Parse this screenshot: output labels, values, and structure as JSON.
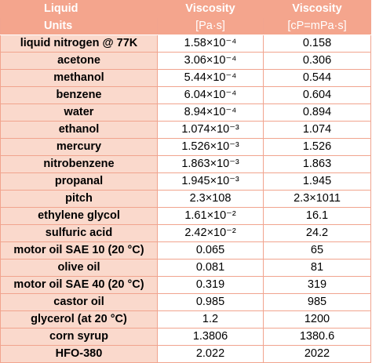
{
  "table": {
    "header": {
      "col1": "Liquid",
      "col2": "Viscosity",
      "col3": "Viscosity"
    },
    "units": {
      "label": "Units",
      "col2": "[Pa·s]",
      "col3": "[cP=mPa·s]"
    },
    "rows": [
      {
        "name": "liquid nitrogen @ 77K",
        "pas": "1.58×10⁻⁴",
        "cp": "0.158"
      },
      {
        "name": "acetone",
        "pas": "3.06×10⁻⁴",
        "cp": "0.306"
      },
      {
        "name": "methanol",
        "pas": "5.44×10⁻⁴",
        "cp": "0.544"
      },
      {
        "name": "benzene",
        "pas": "6.04×10⁻⁴",
        "cp": "0.604"
      },
      {
        "name": "water",
        "pas": "8.94×10⁻⁴",
        "cp": "0.894"
      },
      {
        "name": "ethanol",
        "pas": "1.074×10⁻³",
        "cp": "1.074"
      },
      {
        "name": "mercury",
        "pas": "1.526×10⁻³",
        "cp": "1.526"
      },
      {
        "name": "nitrobenzene",
        "pas": "1.863×10⁻³",
        "cp": "1.863"
      },
      {
        "name": "propanal",
        "pas": "1.945×10⁻³",
        "cp": "1.945"
      },
      {
        "name": "pitch",
        "pas": "2.3×108",
        "cp": "2.3×1011"
      },
      {
        "name": "ethylene glycol",
        "pas": "1.61×10⁻²",
        "cp": "16.1"
      },
      {
        "name": "sulfuric acid",
        "pas": "2.42×10⁻²",
        "cp": "24.2"
      },
      {
        "name": "motor oil SAE 10 (20 °C)",
        "pas": "0.065",
        "cp": "65"
      },
      {
        "name": "olive oil",
        "pas": "0.081",
        "cp": "81"
      },
      {
        "name": "motor oil SAE 40 (20 °C)",
        "pas": "0.319",
        "cp": "319"
      },
      {
        "name": "castor oil",
        "pas": "0.985",
        "cp": "985"
      },
      {
        "name": "glycerol (at 20 °C)",
        "pas": "1.2",
        "cp": "1200"
      },
      {
        "name": "corn syrup",
        "pas": "1.3806",
        "cp": "1380.6"
      },
      {
        "name": "HFO-380",
        "pas": "2.022",
        "cp": "2022"
      }
    ]
  },
  "colors": {
    "header_bg": "#f4a58d",
    "name_cell_bg": "#fad9cc",
    "border": "#f1a48e"
  }
}
